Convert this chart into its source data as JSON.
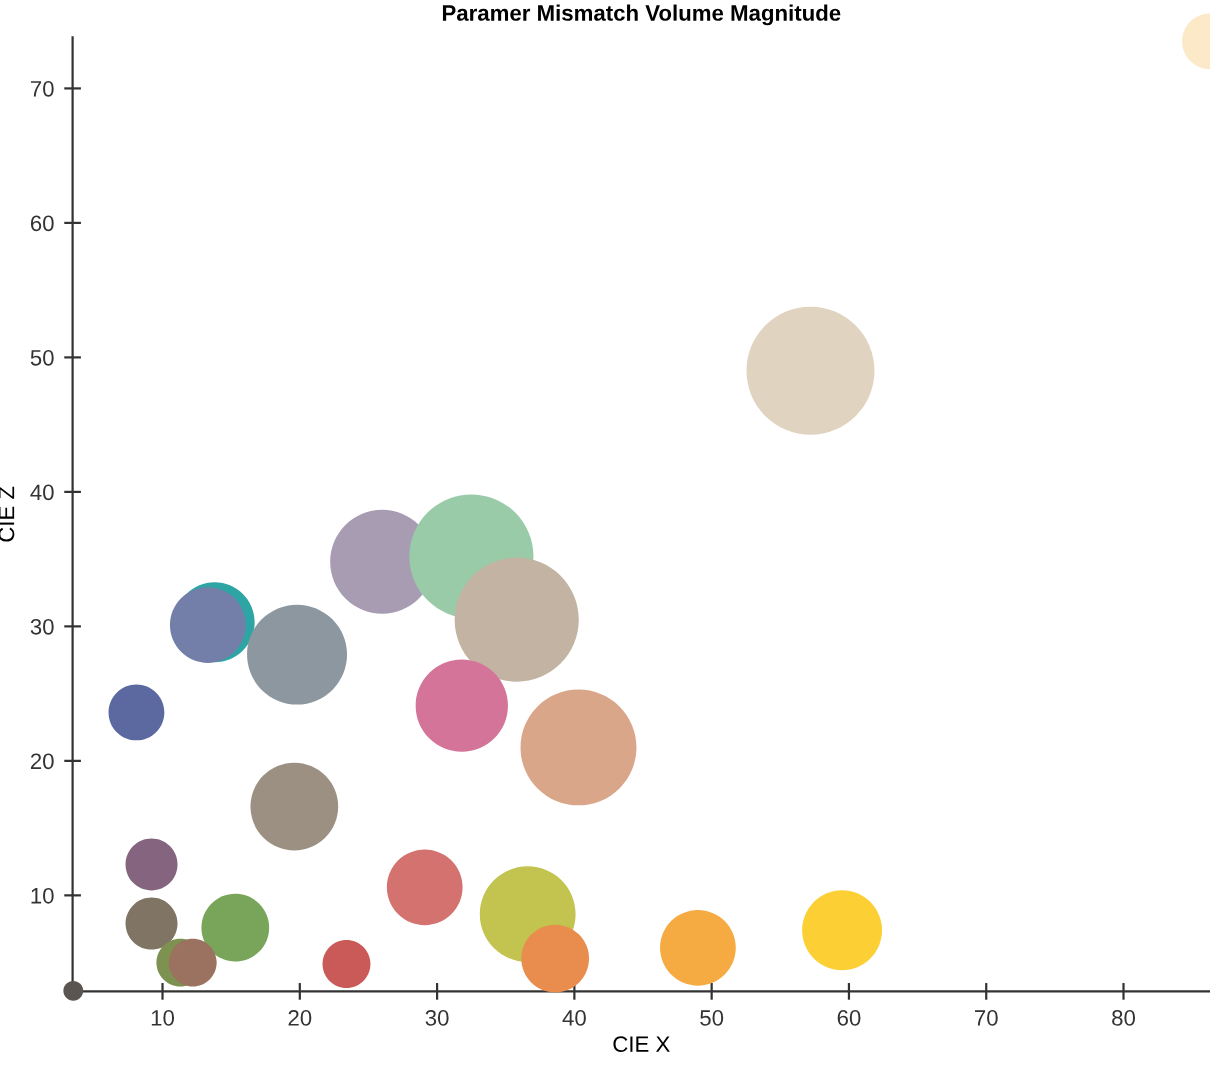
{
  "chart_data": {
    "type": "bubble",
    "title": "Paramer Mismatch Volume Magnitude",
    "xlabel": "CIE X",
    "ylabel": "CIE Z",
    "x": [
      3.5,
      86.3,
      57.2,
      26,
      32.5,
      13.8,
      13.3,
      19.8,
      35.8,
      31.8,
      8.1,
      40.3,
      19.6,
      9.2,
      29.1,
      36.6,
      9.2,
      15.3,
      11.3,
      12.2,
      23.4,
      38.6,
      49,
      59.5
    ],
    "values": [
      2.9,
      73.5,
      49,
      34.8,
      35.2,
      30.3,
      30.1,
      27.9,
      30.5,
      24.1,
      23.6,
      21,
      16.6,
      12.3,
      10.6,
      8.6,
      7.9,
      7.6,
      5,
      5,
      4.9,
      5.3,
      6.1,
      7.4
    ],
    "sizes": [
      0.024,
      0.19,
      1,
      0.66,
      0.94,
      0.39,
      0.35,
      0.61,
      0.94,
      0.52,
      0.19,
      0.82,
      0.47,
      0.165,
      0.35,
      0.56,
      0.165,
      0.28,
      0.14,
      0.14,
      0.14,
      0.28,
      0.35,
      0.39
    ],
    "colors": [
      "#5a5550",
      "#fbe9c8",
      "#e0d3bf",
      "#a79cb1",
      "#9acba9",
      "#2ea5a5",
      "#737fa8",
      "#8c97a0",
      "#c2b3a2",
      "#d47498",
      "#5b69a0",
      "#daa68a",
      "#9c9082",
      "#84647e",
      "#d47270",
      "#c3c44f",
      "#807565",
      "#78a55a",
      "#7d9250",
      "#9b7260",
      "#c95a58",
      "#e98d4e",
      "#f5aa42",
      "#fccf35"
    ],
    "xlim": [
      3.45,
      86.3
    ],
    "ylim": [
      2.86,
      73.8
    ],
    "xticks": [
      10,
      20,
      30,
      40,
      50,
      60,
      70,
      80
    ],
    "yticks": [
      10,
      20,
      30,
      40,
      50,
      60,
      70
    ],
    "grid": false,
    "legend": false
  }
}
